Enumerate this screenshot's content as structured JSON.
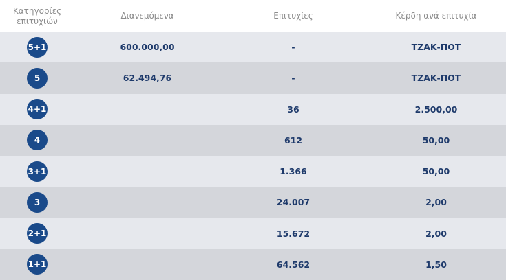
{
  "header": {
    "categories_line1": "Κατηγορίες",
    "categories_line2": "επιτυχιών",
    "distributed": "Διανεμόμενα",
    "winners": "Επιτυχίες",
    "prize_per_win": "Κέρδη ανά επιτυχία"
  },
  "rows": [
    {
      "category": "5+1",
      "distributed": "600.000,00",
      "winners": "-",
      "prize": "ΤΖΑΚ-ΠΟΤ"
    },
    {
      "category": "5",
      "distributed": "62.494,76",
      "winners": "-",
      "prize": "ΤΖΑΚ-ΠΟΤ"
    },
    {
      "category": "4+1",
      "distributed": "",
      "winners": "36",
      "prize": "2.500,00"
    },
    {
      "category": "4",
      "distributed": "",
      "winners": "612",
      "prize": "50,00"
    },
    {
      "category": "3+1",
      "distributed": "",
      "winners": "1.366",
      "prize": "50,00"
    },
    {
      "category": "3",
      "distributed": "",
      "winners": "24.007",
      "prize": "2,00"
    },
    {
      "category": "2+1",
      "distributed": "",
      "winners": "15.672",
      "prize": "2,00"
    },
    {
      "category": "1+1",
      "distributed": "",
      "winners": "64.562",
      "prize": "1,50"
    }
  ],
  "colors": {
    "badge": "#1a4a8a",
    "row_light": "#e6e8ed",
    "row_dark": "#d4d6db",
    "text": "#1e3a6b",
    "header_text": "#8c8c8c"
  }
}
